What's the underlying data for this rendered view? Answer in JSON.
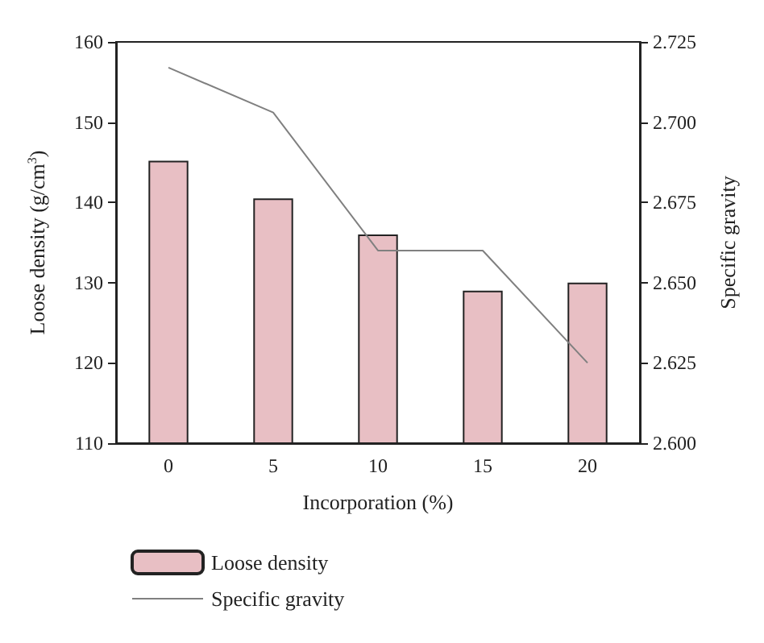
{
  "chart_data": {
    "type": "bar",
    "categories": [
      "0",
      "5",
      "10",
      "15",
      "20"
    ],
    "xlabel": "Incorporation (%)",
    "ylabel": "Loose density (g/cm$^{3}$)",
    "y2label": "Specific gravity",
    "series": [
      {
        "name": "Loose density",
        "color": "#e8bfc4",
        "values": [
          145.2,
          140.5,
          136,
          129,
          130
        ]
      },
      {
        "name": "Specific gravity",
        "type": "line",
        "axis": "y2",
        "color": "#808080",
        "values": [
          2.717,
          2.703,
          2.66,
          2.66,
          2.625
        ]
      }
    ],
    "ylim": [
      110,
      160
    ],
    "yticks": [
      110,
      120,
      130,
      140,
      150,
      160
    ],
    "y2lim": [
      2.6,
      2.725
    ],
    "y2ticks": [
      {
        "value": 2.6,
        "label": "2.600"
      },
      {
        "value": 2.625,
        "label": "2.625"
      },
      {
        "value": 2.65,
        "label": "2.650"
      },
      {
        "value": 2.675,
        "label": "2.675"
      },
      {
        "value": 2.7,
        "label": "2.700"
      },
      {
        "value": 2.725,
        "label": "2.725"
      }
    ],
    "legend": "bottom left",
    "grid": false,
    "marker": "none"
  }
}
